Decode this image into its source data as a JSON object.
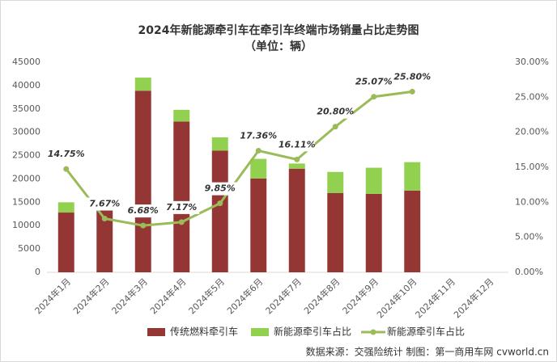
{
  "chart_data": {
    "type": "bar",
    "title": "2024年新能源牵引车在牵引车终端市场销量占比走势图",
    "subtitle": "（单位：辆）",
    "categories": [
      "2024年1月",
      "2024年2月",
      "2024年3月",
      "2024年4月",
      "2024年5月",
      "2024年6月",
      "2024年7月",
      "2024年8月",
      "2024年9月",
      "2024年10月",
      "2024年11月",
      "2024年12月"
    ],
    "series": [
      {
        "name": "传统燃料牵引车",
        "type": "bar",
        "color": "#943634",
        "values": [
          12800,
          14500,
          38900,
          32300,
          26050,
          20100,
          22200,
          17000,
          16800,
          17500,
          null,
          null
        ]
      },
      {
        "name": "新能源牵引车占比",
        "type": "bar",
        "color": "#92d050",
        "values": [
          2200,
          1200,
          2800,
          2500,
          2850,
          4200,
          1100,
          4500,
          5600,
          6100,
          null,
          null
        ]
      },
      {
        "name": "新能源牵引车占比",
        "type": "line",
        "axis": "y2",
        "color": "#9bbb59",
        "values": [
          14.75,
          7.67,
          6.68,
          7.17,
          9.85,
          17.36,
          16.11,
          20.8,
          25.07,
          25.8,
          null,
          null
        ],
        "value_labels": [
          "14.75%",
          "7.67%",
          "6.68%",
          "7.17%",
          "9.85%",
          "17.36%",
          "16.11%",
          "20.80%",
          "25.07%",
          "25.80%",
          null,
          null
        ]
      }
    ],
    "ylim": [
      0,
      45000
    ],
    "yticks": [
      0,
      5000,
      10000,
      15000,
      20000,
      25000,
      30000,
      35000,
      40000,
      45000
    ],
    "y2lim": [
      0,
      30
    ],
    "y2ticks": [
      {
        "value": 0,
        "label": "0.00%"
      },
      {
        "value": 5,
        "label": "5.00%"
      },
      {
        "value": 10,
        "label": "10.00%"
      },
      {
        "value": 15,
        "label": "15.00%"
      },
      {
        "value": 20,
        "label": "20.00%"
      },
      {
        "value": 25,
        "label": "25.00%"
      },
      {
        "value": 30,
        "label": "30.00%"
      }
    ],
    "source": "数据来源：交强险统计  制图：第一商用车网 cvworld.cn"
  }
}
